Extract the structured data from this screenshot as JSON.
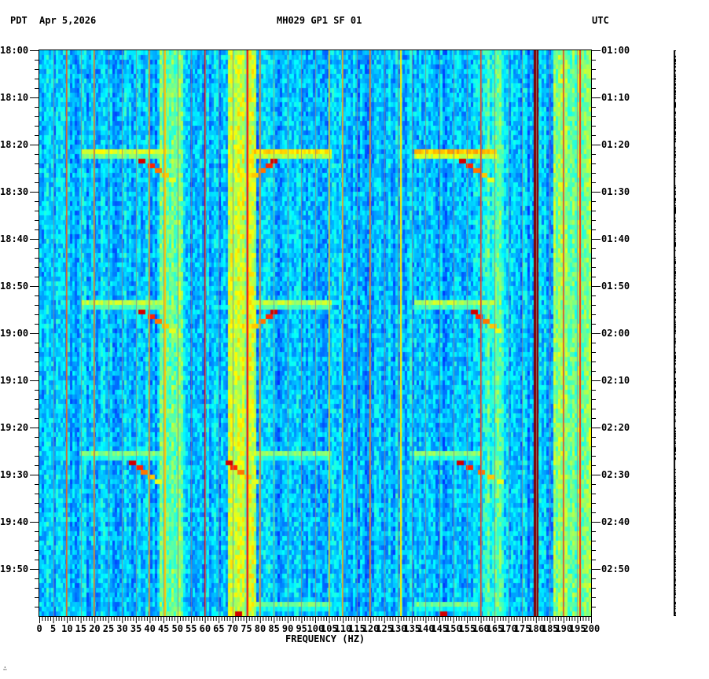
{
  "header": {
    "left_tz": "PDT",
    "date": "Apr 5,2026",
    "station": "MH029 GP1 SF 01",
    "right_tz": "UTC"
  },
  "footer_mark": "∴",
  "chart_data": {
    "type": "heatmap",
    "title": "MH029 GP1 SF 01",
    "subtitle": "Apr 5,2026",
    "xlabel": "FREQUENCY (HZ)",
    "ylabel_left": "PDT",
    "ylabel_right": "UTC",
    "xlim": [
      0,
      200
    ],
    "x_tick_step": 5,
    "x_ticks": [
      0,
      5,
      10,
      15,
      20,
      25,
      30,
      35,
      40,
      45,
      50,
      55,
      60,
      65,
      70,
      75,
      80,
      85,
      90,
      95,
      100,
      105,
      110,
      115,
      120,
      125,
      130,
      135,
      140,
      145,
      150,
      155,
      160,
      165,
      170,
      175,
      180,
      185,
      190,
      195,
      200
    ],
    "y_ticks_left": [
      "18:00",
      "18:10",
      "18:20",
      "18:30",
      "18:40",
      "18:50",
      "19:00",
      "19:10",
      "19:20",
      "19:30",
      "19:40",
      "19:50"
    ],
    "y_ticks_right": [
      "01:00",
      "01:10",
      "01:20",
      "01:30",
      "01:40",
      "01:50",
      "02:00",
      "02:10",
      "02:20",
      "02:30",
      "02:40",
      "02:50"
    ],
    "time_span_minutes": 120,
    "minor_tick_minutes": 2,
    "grid": true,
    "colormap": [
      "#00008f",
      "#0000ff",
      "#0080ff",
      "#00ffff",
      "#80ff80",
      "#ffff00",
      "#ff8000",
      "#ff0000",
      "#800000"
    ],
    "background_level": 0.25,
    "broadband_features": [
      {
        "f_start": 43,
        "f_end": 52,
        "level": 0.48
      },
      {
        "f_start": 68,
        "f_end": 78,
        "level": 0.55
      },
      {
        "f_start": 160,
        "f_end": 168,
        "level": 0.42
      },
      {
        "f_start": 186,
        "f_end": 200,
        "level": 0.5
      }
    ],
    "narrow_lines_hz": [
      {
        "f": 10,
        "level": 0.78
      },
      {
        "f": 20,
        "level": 0.75
      },
      {
        "f": 40,
        "level": 0.72
      },
      {
        "f": 45.5,
        "level": 0.68
      },
      {
        "f": 60,
        "level": 0.9
      },
      {
        "f": 75.5,
        "level": 0.85
      },
      {
        "f": 80,
        "level": 0.72
      },
      {
        "f": 105,
        "level": 0.6
      },
      {
        "f": 110,
        "level": 0.7
      },
      {
        "f": 120,
        "level": 0.75
      },
      {
        "f": 131,
        "level": 0.65
      },
      {
        "f": 160,
        "level": 0.82
      },
      {
        "f": 180,
        "level": 1.0
      },
      {
        "f": 190,
        "level": 0.8
      },
      {
        "f": 196,
        "level": 0.82
      }
    ],
    "events": [
      {
        "start_min": 21,
        "band": [
          15,
          45
        ],
        "level": 0.58,
        "chirp_to_hz": 48
      },
      {
        "start_min": 21,
        "band": [
          77,
          105
        ],
        "level": 0.65,
        "chirp_to_hz": 75
      },
      {
        "start_min": 21,
        "band": [
          136,
          165
        ],
        "level": 0.68,
        "chirp_to_hz": 163
      },
      {
        "start_min": 53,
        "band": [
          15,
          45
        ],
        "level": 0.55,
        "chirp_to_hz": 48
      },
      {
        "start_min": 53,
        "band": [
          77,
          105
        ],
        "level": 0.55,
        "chirp_to_hz": 75
      },
      {
        "start_min": 53,
        "band": [
          136,
          165
        ],
        "level": 0.55,
        "chirp_to_hz": 166
      },
      {
        "start_min": 85,
        "band": [
          15,
          45
        ],
        "level": 0.5,
        "chirp_to_hz": 43
      },
      {
        "start_min": 85,
        "band": [
          77,
          105
        ],
        "level": 0.5,
        "chirp_to_hz": 78
      },
      {
        "start_min": 85,
        "band": [
          136,
          160
        ],
        "level": 0.5,
        "chirp_to_hz": 167
      },
      {
        "start_min": 117,
        "band": [
          77,
          105
        ],
        "level": 0.48,
        "chirp_to_hz": 82
      },
      {
        "start_min": 117,
        "band": [
          136,
          158
        ],
        "level": 0.48,
        "chirp_to_hz": 156
      }
    ]
  }
}
